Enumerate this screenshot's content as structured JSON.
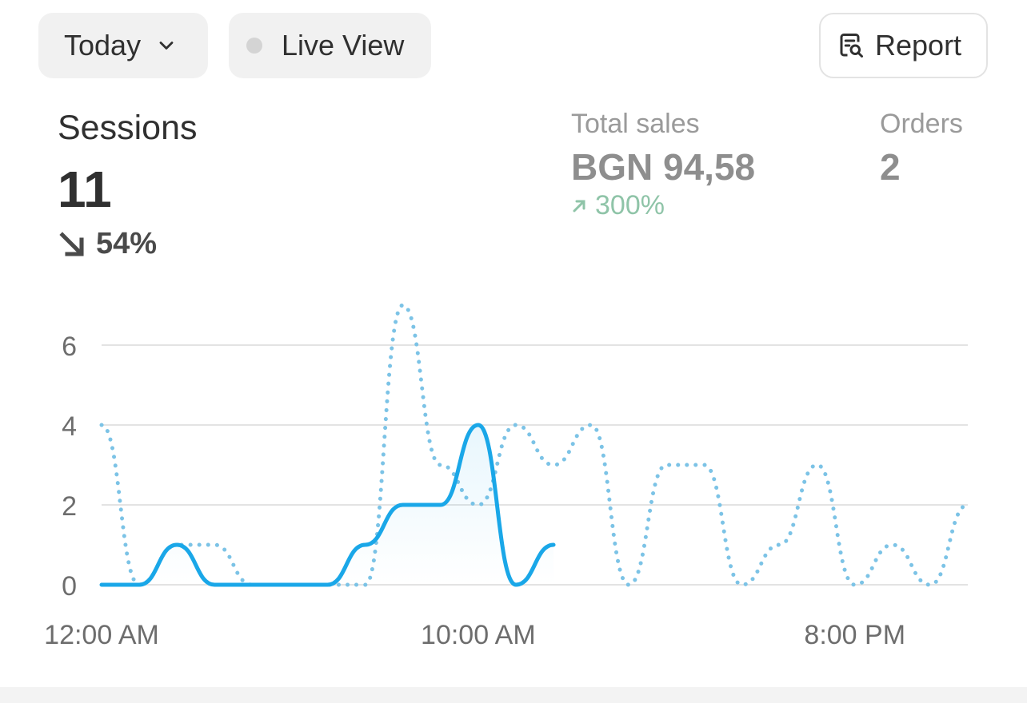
{
  "controls": {
    "date_range_label": "Today",
    "live_view_label": "Live View",
    "report_label": "Report"
  },
  "metrics": {
    "sessions": {
      "title": "Sessions",
      "value": "11",
      "change": "54%",
      "direction": "down"
    },
    "total_sales": {
      "title": "Total sales",
      "value": "BGN 94,58",
      "change": "300%",
      "direction": "up"
    },
    "orders": {
      "title": "Orders",
      "value": "2"
    }
  },
  "colors": {
    "primary_line": "#1aa7e8",
    "comparison_line": "#7cc3e6",
    "positive": "#8fc4a8",
    "grid": "#e3e3e3"
  },
  "chart_data": {
    "type": "line",
    "x_labels_shown": [
      "12:00 AM",
      "10:00 AM",
      "8:00 PM"
    ],
    "y_ticks": [
      0,
      2,
      4,
      6
    ],
    "ylim": [
      0,
      7
    ],
    "grid": true,
    "x_hours": [
      0,
      1,
      2,
      3,
      4,
      5,
      6,
      7,
      8,
      9,
      10,
      11,
      12,
      13,
      14,
      15,
      16,
      17,
      18,
      19,
      20,
      21,
      22,
      23
    ],
    "series": [
      {
        "style": "solid",
        "values": [
          0,
          0,
          1,
          0,
          0,
          0,
          0,
          1,
          2,
          2,
          4,
          0,
          1
        ]
      },
      {
        "style": "dotted",
        "values": [
          4,
          0,
          1,
          1,
          0,
          0,
          0,
          0,
          7,
          3,
          2,
          4,
          3,
          4,
          0,
          3,
          3,
          0,
          1,
          3,
          0,
          1,
          0,
          2
        ]
      }
    ]
  }
}
